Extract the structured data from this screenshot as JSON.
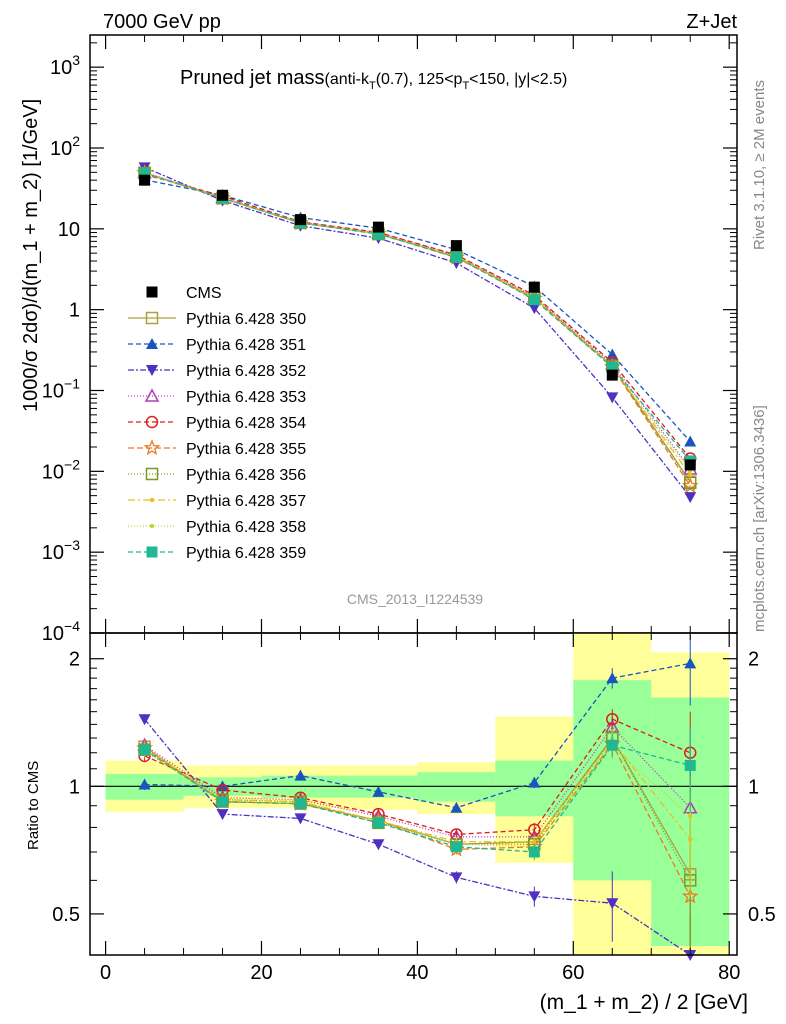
{
  "header": {
    "left": "7000 GeV pp",
    "right": "Z+Jet"
  },
  "side_labels": {
    "rivet": "Rivet 3.1.10, ≥ 2M events",
    "mcplots": "mcplots.cern.ch [arXiv:1306.3436]"
  },
  "chart_data": {
    "type": "line",
    "title": {
      "main": "Pruned jet mass",
      "sub_a": "(anti-k",
      "sub_b": "T",
      "sub_c": "(0.7), 125<p",
      "sub_d": "T",
      "sub_e": "<150, |y|<2.5)"
    },
    "analysis_id": "CMS_2013_I1224539",
    "xlabel": "(m_1 + m_2) / 2 [GeV]",
    "ylabel_top": "1000/σ 2dσ)/d(m_1 + m_2) [1/GeV]",
    "ylabel_bottom": "Ratio to CMS",
    "xlim": [
      -2,
      81
    ],
    "ylim_top": [
      0.0001,
      2500
    ],
    "ylim_bottom": [
      0.4,
      2.3
    ],
    "y_scale_top": "log",
    "y_scale_bottom": "log",
    "legend_position": "left",
    "x_ticks": [
      0,
      20,
      40,
      60,
      80
    ],
    "y_ticks_top": [
      {
        "v": 1000,
        "b": "10",
        "e": "3"
      },
      {
        "v": 100,
        "b": "10",
        "e": "2"
      },
      {
        "v": 10,
        "b": "10",
        "e": ""
      },
      {
        "v": 1,
        "b": "1",
        "e": ""
      },
      {
        "v": 0.1,
        "b": "10",
        "e": "−1"
      },
      {
        "v": 0.01,
        "b": "10",
        "e": "−2"
      },
      {
        "v": 0.001,
        "b": "10",
        "e": "−3"
      },
      {
        "v": 0.0001,
        "b": "10",
        "e": "−4"
      }
    ],
    "y_ticks_bottom": [
      {
        "v": 0.5,
        "label": "0.5"
      },
      {
        "v": 1,
        "label": "1"
      },
      {
        "v": 2,
        "label": "2"
      }
    ],
    "x": [
      5,
      15,
      25,
      35,
      45,
      55,
      65,
      75
    ],
    "bin_edges": [
      0,
      10,
      20,
      30,
      40,
      50,
      60,
      70,
      80
    ],
    "data": {
      "name": "CMS",
      "values": [
        40,
        26,
        13,
        10.5,
        6.2,
        1.9,
        0.155,
        0.012
      ],
      "band_inner": [
        [
          0.93,
          1.07
        ],
        [
          0.95,
          1.05
        ],
        [
          0.94,
          1.06
        ],
        [
          0.94,
          1.06
        ],
        [
          0.92,
          1.08
        ],
        [
          0.85,
          1.15
        ],
        [
          0.6,
          1.78
        ],
        [
          0.42,
          1.62
        ]
      ],
      "band_outer": [
        [
          0.87,
          1.15
        ],
        [
          0.89,
          1.12
        ],
        [
          0.89,
          1.12
        ],
        [
          0.88,
          1.12
        ],
        [
          0.86,
          1.14
        ],
        [
          0.66,
          1.46
        ],
        [
          0.35,
          2.35
        ],
        [
          0.35,
          2.07
        ]
      ]
    },
    "series": [
      {
        "name": "Pythia 6.428 350",
        "color": "#aaa040",
        "dash": "",
        "marker": "square-open",
        "ratio": [
          1.24,
          0.92,
          0.91,
          0.83,
          0.73,
          0.74,
          1.3,
          0.62
        ],
        "err": [
          0.04,
          0.02,
          0.02,
          0.02,
          0.02,
          0.03,
          0.08,
          0.2
        ]
      },
      {
        "name": "Pythia 6.428 351",
        "color": "#1a54c0",
        "dash": "5,3",
        "marker": "triangle-up",
        "ratio": [
          1.01,
          1.0,
          1.06,
          0.97,
          0.89,
          1.02,
          1.8,
          1.95
        ],
        "err": [
          0.03,
          0.02,
          0.02,
          0.02,
          0.02,
          0.03,
          0.1,
          0.4
        ]
      },
      {
        "name": "Pythia 6.428 352",
        "color": "#5030c0",
        "dash": "6,2,2,2",
        "marker": "triangle-down",
        "ratio": [
          1.44,
          0.86,
          0.84,
          0.73,
          0.61,
          0.55,
          0.53,
          0.4
        ],
        "err": [
          0.04,
          0.02,
          0.02,
          0.02,
          0.02,
          0.03,
          0.1,
          0.1
        ]
      },
      {
        "name": "Pythia 6.428 353",
        "color": "#b03ab0",
        "dash": "1,2",
        "marker": "triangle-open",
        "ratio": [
          1.25,
          0.94,
          0.93,
          0.85,
          0.76,
          0.76,
          1.38,
          0.89
        ],
        "err": [
          0.04,
          0.02,
          0.02,
          0.02,
          0.02,
          0.03,
          0.08,
          0.25
        ]
      },
      {
        "name": "Pythia 6.428 354",
        "color": "#dc1e1e",
        "dash": "5,3",
        "marker": "circle-open",
        "ratio": [
          1.18,
          0.98,
          0.94,
          0.86,
          0.77,
          0.79,
          1.44,
          1.2
        ],
        "err": [
          0.04,
          0.02,
          0.02,
          0.02,
          0.02,
          0.03,
          0.08,
          0.3
        ]
      },
      {
        "name": "Pythia 6.428 355",
        "color": "#f07820",
        "dash": "6,3",
        "marker": "star-open",
        "ratio": [
          1.23,
          0.92,
          0.91,
          0.83,
          0.71,
          0.72,
          1.26,
          0.55
        ],
        "err": [
          0.04,
          0.02,
          0.02,
          0.02,
          0.02,
          0.03,
          0.08,
          0.2
        ]
      },
      {
        "name": "Pythia 6.428 356",
        "color": "#7a9a20",
        "dash": "1,2",
        "marker": "square-open",
        "ratio": [
          1.22,
          0.93,
          0.92,
          0.82,
          0.73,
          0.73,
          1.3,
          0.6
        ],
        "err": [
          0.04,
          0.02,
          0.02,
          0.02,
          0.02,
          0.03,
          0.08,
          0.2
        ]
      },
      {
        "name": "Pythia 6.428 357",
        "color": "#e8c020",
        "dash": "7,3,2,3",
        "marker": "dot",
        "ratio": [
          1.23,
          0.93,
          0.92,
          0.83,
          0.74,
          0.74,
          1.28,
          0.75
        ],
        "err": [
          0.04,
          0.02,
          0.02,
          0.02,
          0.02,
          0.03,
          0.08,
          0.2
        ]
      },
      {
        "name": "Pythia 6.428 358",
        "color": "#c8d030",
        "dash": "1,2",
        "marker": "dot",
        "ratio": [
          1.21,
          0.92,
          0.91,
          0.83,
          0.73,
          0.72,
          1.24,
          0.85
        ],
        "err": [
          0.04,
          0.02,
          0.02,
          0.02,
          0.02,
          0.03,
          0.08,
          0.2
        ]
      },
      {
        "name": "Pythia 6.428 359",
        "color": "#20b890",
        "dash": "5,3",
        "marker": "square",
        "ratio": [
          1.22,
          0.92,
          0.91,
          0.82,
          0.72,
          0.7,
          1.25,
          1.12
        ],
        "err": [
          0.04,
          0.02,
          0.02,
          0.02,
          0.02,
          0.03,
          0.08,
          0.25
        ]
      }
    ]
  }
}
